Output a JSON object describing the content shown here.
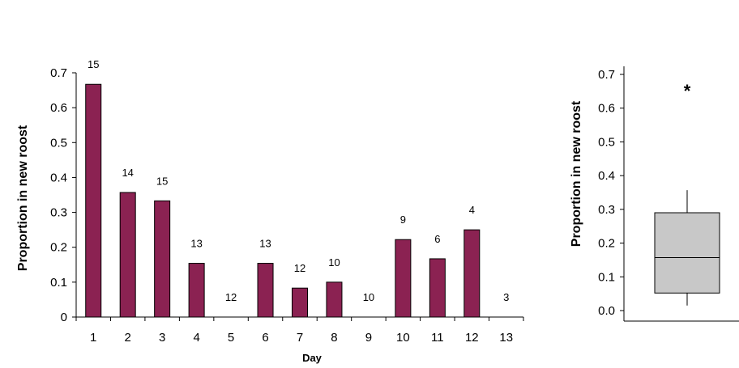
{
  "colors": {
    "bar": "#8b2252",
    "box": "#c8c8c8",
    "axis": "#000000"
  },
  "chart_data": [
    {
      "type": "bar",
      "xlabel": "Day",
      "ylabel": "Proportion in new roost",
      "ylim": [
        0,
        0.7
      ],
      "yticks": [
        "0",
        "0.1",
        "0.2",
        "0.3",
        "0.4",
        "0.5",
        "0.6",
        "0.7"
      ],
      "categories": [
        "1",
        "2",
        "3",
        "4",
        "5",
        "6",
        "7",
        "8",
        "9",
        "10",
        "11",
        "12",
        "13"
      ],
      "values": [
        0.667,
        0.357,
        0.333,
        0.154,
        0,
        0.154,
        0.083,
        0.1,
        0,
        0.222,
        0.167,
        0.25,
        0
      ],
      "bar_labels": [
        "15",
        "14",
        "15",
        "13",
        "12",
        "13",
        "12",
        "10",
        "10",
        "9",
        "6",
        "4",
        "3"
      ],
      "grid": false
    },
    {
      "type": "box",
      "ylabel": "Proportion in new roost",
      "ylim": [
        0,
        0.7
      ],
      "yticks": [
        "0.0",
        "0.1",
        "0.2",
        "0.3",
        "0.4",
        "0.5",
        "0.6",
        "0.7"
      ],
      "box": {
        "whisker_low": 0.015,
        "q1": 0.052,
        "median": 0.157,
        "q3": 0.29,
        "whisker_high": 0.357
      },
      "outliers": [
        0.667
      ],
      "outlier_symbol": "*",
      "grid": false
    }
  ]
}
